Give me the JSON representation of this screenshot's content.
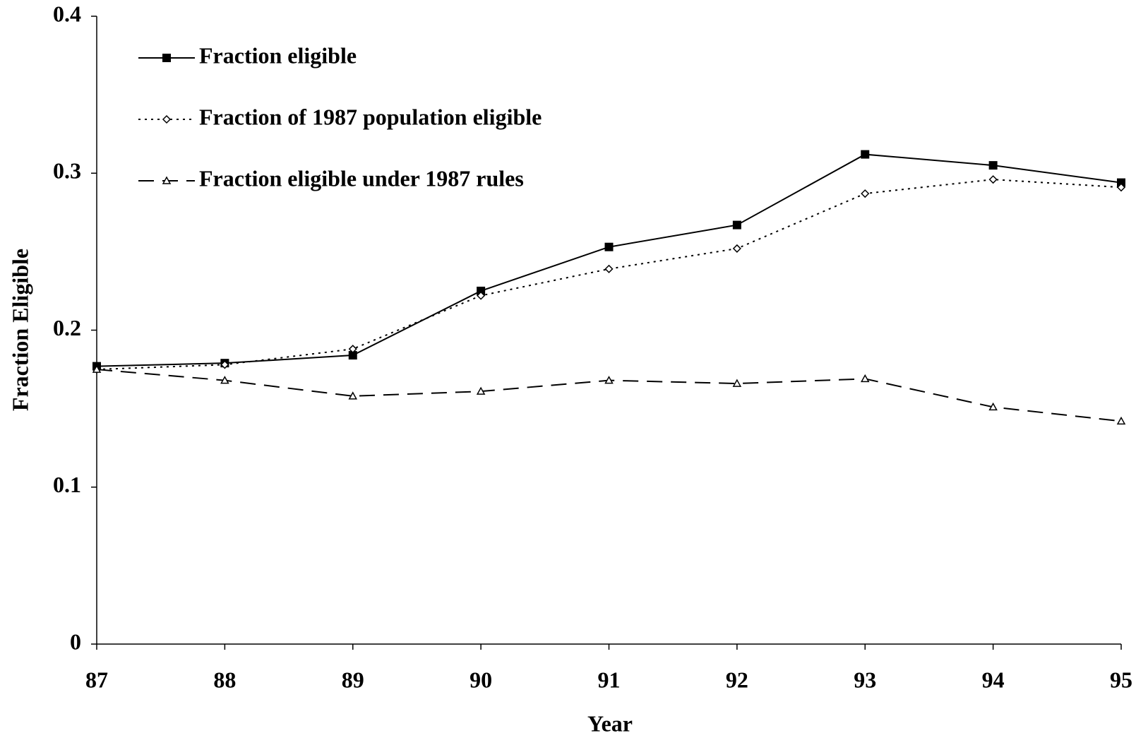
{
  "chart_data": {
    "type": "line",
    "x_label": "Year",
    "y_label": "Fraction Eligible",
    "x": [
      87,
      88,
      89,
      90,
      91,
      92,
      93,
      94,
      95
    ],
    "xlim": [
      87,
      95
    ],
    "xticks": [
      87,
      88,
      89,
      90,
      91,
      92,
      93,
      94,
      95
    ],
    "ylim": [
      0,
      0.4
    ],
    "yticks": [
      0,
      0.1,
      0.2,
      0.3,
      0.4
    ],
    "legend": "top-left",
    "series": [
      {
        "name": "Fraction eligible",
        "color": "#000000",
        "style": "solid",
        "marker": "square",
        "values": [
          0.177,
          0.179,
          0.184,
          0.225,
          0.253,
          0.267,
          0.312,
          0.305,
          0.294
        ]
      },
      {
        "name": "Fraction of 1987 population eligible",
        "color": "#000000",
        "style": "dotted",
        "marker": "diamond",
        "values": [
          0.175,
          0.178,
          0.188,
          0.222,
          0.239,
          0.252,
          0.287,
          0.296,
          0.291
        ]
      },
      {
        "name": "Fraction eligible under 1987 rules",
        "color": "#000000",
        "style": "dashed",
        "marker": "triangle",
        "values": [
          0.175,
          0.168,
          0.158,
          0.161,
          0.168,
          0.166,
          0.169,
          0.151,
          0.142
        ]
      }
    ]
  }
}
